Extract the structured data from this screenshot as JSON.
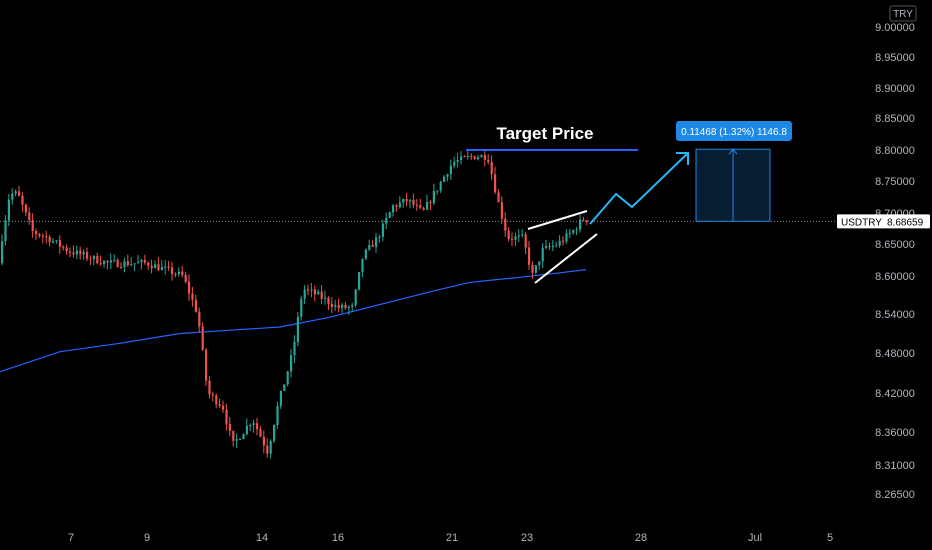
{
  "chart_data": {
    "type": "candlestick",
    "symbol_badge": "USDTRY",
    "current_price_label": "8.68659",
    "current_price": 8.68659,
    "currency": "TRY",
    "y_ticks": [
      "9.00000",
      "8.95000",
      "8.90000",
      "8.85000",
      "8.80000",
      "8.75000",
      "8.70000",
      "8.65000",
      "8.60000",
      "8.54000",
      "8.48000",
      "8.42000",
      "8.36000",
      "8.31000",
      "8.26500"
    ],
    "x_ticks": [
      "7",
      "9",
      "14",
      "16",
      "21",
      "23",
      "28",
      "Jul",
      "5"
    ],
    "annotations": {
      "target_label": "Target Price",
      "target_level": 8.8,
      "measure_label": "0.11468 (1.32%) 1146.8",
      "measure_from": 8.68659,
      "measure_to": 8.80127
    },
    "colors": {
      "up": "#26a69a",
      "down": "#ef5350",
      "ma": "#2962ff",
      "target": "#2962ff",
      "projection": "#29b6f6",
      "wedge": "#ffffff",
      "badge": "#1e88e5"
    }
  }
}
